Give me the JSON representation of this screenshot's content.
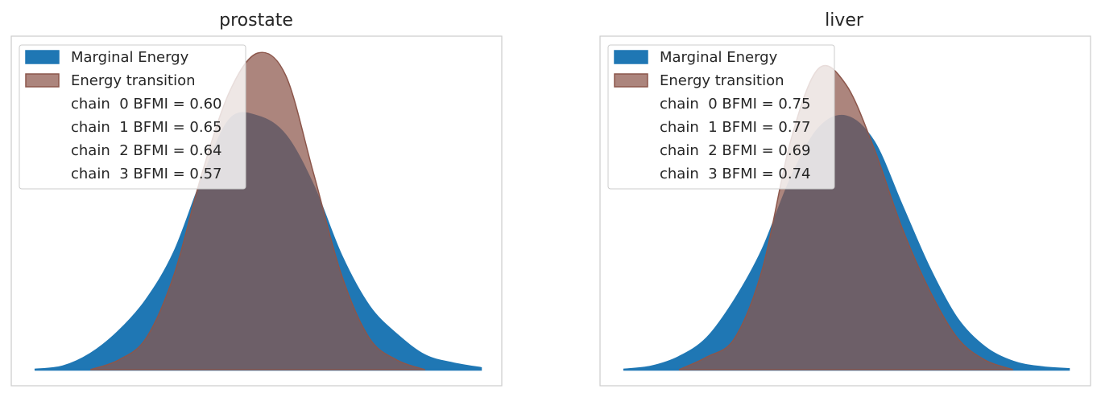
{
  "chart_data": [
    {
      "type": "area",
      "title": "prostate",
      "xlabel": "",
      "ylabel": "",
      "grid": false,
      "legend_position": "top-left",
      "colors": {
        "marginal": "#1f77b4",
        "transition": "#8c564b"
      },
      "series": [
        {
          "name": "Marginal Energy",
          "x": [
            -4.0,
            -3.5,
            -3.0,
            -2.5,
            -2.0,
            -1.5,
            -1.0,
            -0.5,
            0.0,
            0.5,
            1.0,
            1.5,
            2.0,
            2.5,
            3.0,
            3.5,
            4.0
          ],
          "y": [
            0.0,
            0.01,
            0.05,
            0.12,
            0.22,
            0.37,
            0.6,
            0.79,
            0.8,
            0.74,
            0.58,
            0.36,
            0.2,
            0.11,
            0.045,
            0.02,
            0.005
          ]
        },
        {
          "name": "Energy transition",
          "x": [
            -3.0,
            -2.5,
            -2.0,
            -1.5,
            -1.0,
            -0.5,
            0.0,
            0.5,
            1.0,
            1.5,
            2.0,
            2.5,
            3.0
          ],
          "y": [
            0.0,
            0.03,
            0.1,
            0.3,
            0.62,
            0.88,
            1.0,
            0.93,
            0.62,
            0.3,
            0.1,
            0.03,
            0.0
          ]
        }
      ],
      "bfmi": [
        "chain  0 BFMI = 0.60",
        "chain  1 BFMI = 0.65",
        "chain  2 BFMI = 0.64",
        "chain  3 BFMI = 0.57"
      ]
    },
    {
      "type": "area",
      "title": "liver",
      "xlabel": "",
      "ylabel": "",
      "grid": false,
      "legend_position": "top-left",
      "colors": {
        "marginal": "#1f77b4",
        "transition": "#8c564b"
      },
      "series": [
        {
          "name": "Marginal Energy",
          "x": [
            -4.0,
            -3.5,
            -3.0,
            -2.5,
            -2.0,
            -1.5,
            -1.0,
            -0.5,
            0.0,
            0.5,
            1.0,
            1.5,
            2.0,
            2.5,
            3.0,
            3.5,
            4.0
          ],
          "y": [
            0.0,
            0.01,
            0.04,
            0.1,
            0.22,
            0.38,
            0.6,
            0.76,
            0.8,
            0.72,
            0.52,
            0.32,
            0.16,
            0.07,
            0.025,
            0.008,
            0.002
          ]
        },
        {
          "name": "Energy transition",
          "x": [
            -3.0,
            -2.5,
            -2.0,
            -1.5,
            -1.0,
            -0.5,
            0.0,
            0.5,
            1.0,
            1.5,
            2.0,
            2.5,
            3.0
          ],
          "y": [
            0.0,
            0.04,
            0.1,
            0.32,
            0.72,
            0.95,
            0.9,
            0.7,
            0.45,
            0.25,
            0.1,
            0.03,
            0.0
          ]
        }
      ],
      "bfmi": [
        "chain  0 BFMI = 0.75",
        "chain  1 BFMI = 0.77",
        "chain  2 BFMI = 0.69",
        "chain  3 BFMI = 0.74"
      ]
    }
  ]
}
